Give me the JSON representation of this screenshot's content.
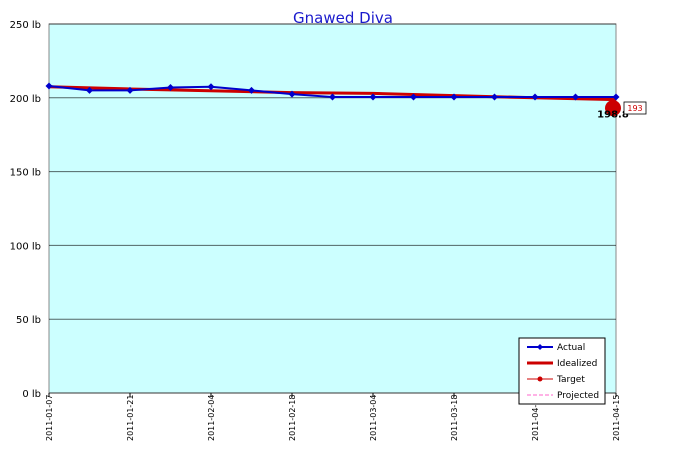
{
  "chart_data": {
    "type": "line",
    "title": "Gnawed Diva",
    "unit_suffix": " lb",
    "ylim": [
      0,
      250
    ],
    "yticks": [
      0,
      50,
      100,
      150,
      200,
      250
    ],
    "xlim": [
      "2011-01-07",
      "2011-04-15"
    ],
    "xticks": [
      "2011-01-07",
      "2011-01-21",
      "2011-02-04",
      "2011-02-18",
      "2011-03-04",
      "2011-03-18",
      "2011-04-01",
      "2011-04-15"
    ],
    "grid": true,
    "background": "#ccffff",
    "legend_position": "bottom-right",
    "series": [
      {
        "name": "Actual",
        "color": "#0000cc",
        "style": "line-diamond-markers",
        "points": [
          {
            "x": "2011-01-07",
            "y": 208
          },
          {
            "x": "2011-01-14",
            "y": 205
          },
          {
            "x": "2011-01-21",
            "y": 205
          },
          {
            "x": "2011-01-28",
            "y": 207
          },
          {
            "x": "2011-02-04",
            "y": 207.5
          },
          {
            "x": "2011-02-11",
            "y": 205
          },
          {
            "x": "2011-02-18",
            "y": 202.5
          },
          {
            "x": "2011-02-25",
            "y": 200.5
          },
          {
            "x": "2011-03-04",
            "y": 200.5
          },
          {
            "x": "2011-03-11",
            "y": 200.5
          },
          {
            "x": "2011-03-18",
            "y": 200.5
          },
          {
            "x": "2011-03-25",
            "y": 200.5
          },
          {
            "x": "2011-04-01",
            "y": 200.5
          },
          {
            "x": "2011-04-08",
            "y": 200.5
          },
          {
            "x": "2011-04-15",
            "y": 200.5
          }
        ]
      },
      {
        "name": "Idealized",
        "color": "#cc0000",
        "style": "thick-line",
        "points": [
          {
            "x": "2011-01-07",
            "y": 207.5
          },
          {
            "x": "2011-01-21",
            "y": 206
          },
          {
            "x": "2011-02-18",
            "y": 203.5
          },
          {
            "x": "2011-03-04",
            "y": 203
          },
          {
            "x": "2011-03-18",
            "y": 201.5
          },
          {
            "x": "2011-04-01",
            "y": 200
          },
          {
            "x": "2011-04-15",
            "y": 198.8
          }
        ]
      },
      {
        "name": "Target",
        "color": "#cc0000",
        "style": "dot",
        "points": [
          {
            "x": "2011-04-15",
            "y": 193
          }
        ]
      },
      {
        "name": "Projected",
        "color": "#ff66cc",
        "style": "dashed",
        "points": []
      }
    ],
    "annotations": {
      "end_value_label": "198.8",
      "target_label": "193"
    }
  }
}
